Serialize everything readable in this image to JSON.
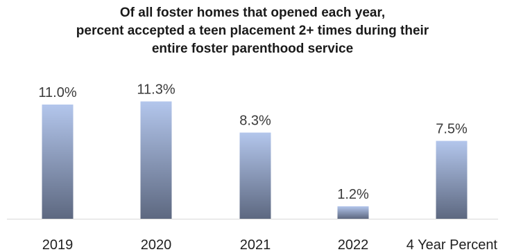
{
  "chart_data": {
    "type": "bar",
    "title_lines": [
      "Of all foster homes that opened each year,",
      "percent accepted a teen placement 2+ times during their",
      "entire foster parenthood service"
    ],
    "categories": [
      "2019",
      "2020",
      "2021",
      "2022",
      "4 Year Percent"
    ],
    "values": [
      11.0,
      11.3,
      8.3,
      1.2,
      7.5
    ],
    "value_labels": [
      "11.0%",
      "11.3%",
      "8.3%",
      "1.2%",
      "7.5%"
    ],
    "xlabel": "",
    "ylabel": "",
    "ylim": [
      0,
      12
    ],
    "grid": false,
    "legend": "none",
    "colors": {
      "bar_top": "#b3c6ec",
      "bar_bottom": "#5d6880",
      "axis": "#d9d9d9"
    }
  }
}
